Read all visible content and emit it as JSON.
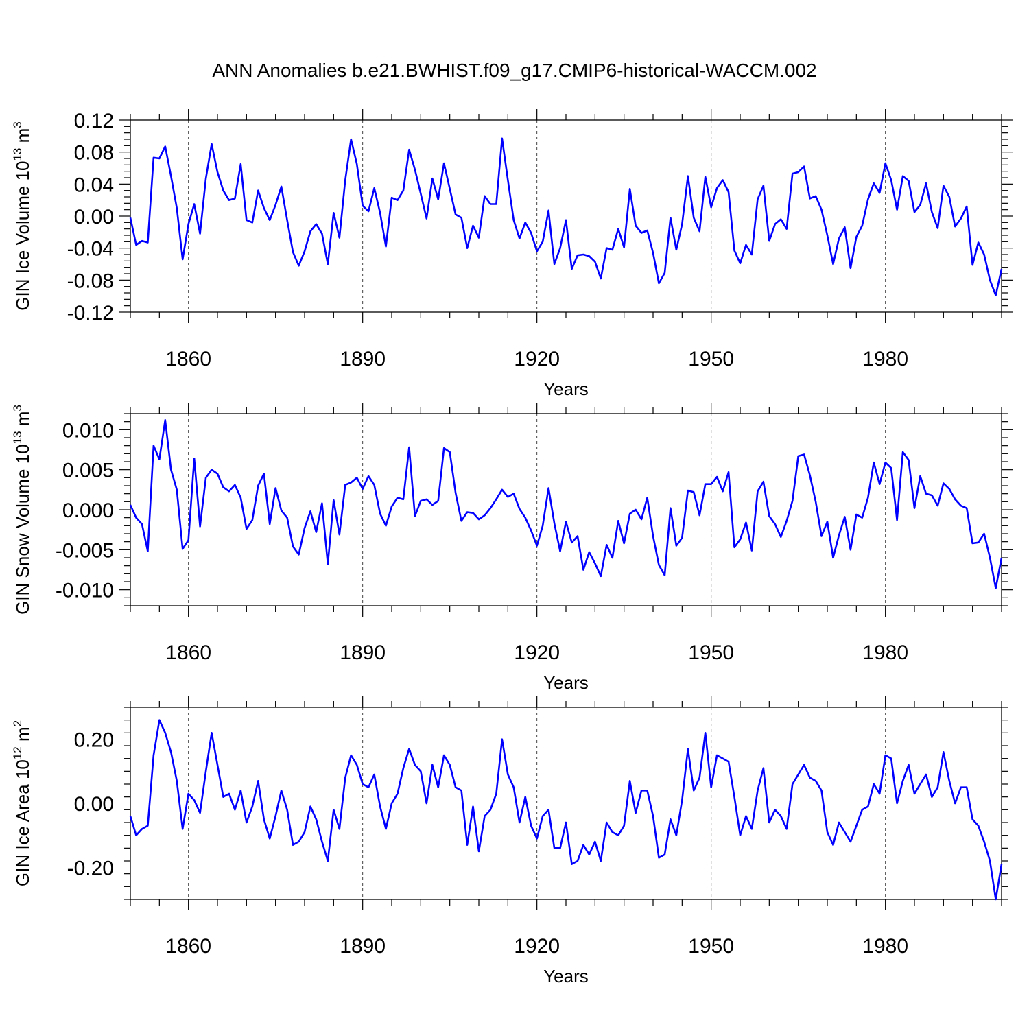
{
  "title": "ANN Anomalies b.e21.BWHIST.f09_g17.CMIP6-historical-WACCM.002",
  "colors": {
    "series": "#0000ff",
    "axes": "#000000",
    "grid": "#444444"
  },
  "chart_data": [
    {
      "type": "line",
      "ylabel": "GIN Ice Volume 10^13 m^3",
      "ylabel_main": "GIN Ice Volume 10",
      "ylabel_exp": "13",
      "ylabel_unit": " m",
      "ylabel_unit_exp": "3",
      "xlabel": "Years",
      "xlim": [
        1850,
        2000
      ],
      "ylim": [
        -0.12,
        0.12
      ],
      "xticks": [
        1860,
        1890,
        1920,
        1950,
        1980
      ],
      "xtick_labels": [
        "1860",
        "1890",
        "1920",
        "1950",
        "1980"
      ],
      "yticks": [
        -0.12,
        -0.08,
        -0.04,
        0.0,
        0.04,
        0.08,
        0.12
      ],
      "ytick_labels": [
        "-0.12",
        "-0.08",
        "-0.04",
        "0.00",
        "0.04",
        "0.08",
        "0.12"
      ],
      "x_start": 1850,
      "series": [
        {
          "name": "GIN Ice Volume",
          "values": [
            -0.002,
            -0.036,
            -0.031,
            -0.033,
            0.073,
            0.072,
            0.087,
            0.05,
            0.01,
            -0.054,
            -0.01,
            0.015,
            -0.022,
            0.047,
            0.09,
            0.055,
            0.032,
            0.02,
            0.022,
            0.065,
            -0.005,
            -0.008,
            0.032,
            0.01,
            -0.005,
            0.014,
            0.037,
            -0.005,
            -0.045,
            -0.062,
            -0.044,
            -0.019,
            -0.01,
            -0.022,
            -0.06,
            0.004,
            -0.027,
            0.045,
            0.096,
            0.065,
            0.013,
            0.006,
            0.035,
            0.004,
            -0.038,
            0.023,
            0.02,
            0.032,
            0.083,
            0.058,
            0.028,
            -0.003,
            0.047,
            0.021,
            0.066,
            0.034,
            0.002,
            -0.002,
            -0.04,
            -0.012,
            -0.027,
            0.025,
            0.015,
            0.015,
            0.097,
            0.045,
            -0.005,
            -0.028,
            -0.008,
            -0.021,
            -0.044,
            -0.032,
            0.007,
            -0.06,
            -0.04,
            -0.005,
            -0.066,
            -0.049,
            -0.048,
            -0.05,
            -0.057,
            -0.078,
            -0.04,
            -0.042,
            -0.016,
            -0.039,
            0.034,
            -0.012,
            -0.021,
            -0.018,
            -0.046,
            -0.084,
            -0.071,
            -0.002,
            -0.042,
            -0.01,
            0.05,
            -0.002,
            -0.019,
            0.049,
            0.011,
            0.035,
            0.045,
            0.03,
            -0.043,
            -0.059,
            -0.036,
            -0.048,
            0.021,
            0.038,
            -0.031,
            -0.01,
            -0.004,
            -0.016,
            0.053,
            0.055,
            0.062,
            0.022,
            0.025,
            0.008,
            -0.024,
            -0.06,
            -0.028,
            -0.014,
            -0.065,
            -0.026,
            -0.012,
            0.021,
            0.041,
            0.029,
            0.066,
            0.045,
            0.008,
            0.05,
            0.044,
            0.005,
            0.014,
            0.041,
            0.005,
            -0.015,
            0.038,
            0.024,
            -0.013,
            -0.003,
            0.012,
            -0.061,
            -0.033,
            -0.048,
            -0.08,
            -0.099,
            -0.066
          ]
        }
      ]
    },
    {
      "type": "line",
      "ylabel": "GIN Snow Volume 10^13 m^3",
      "ylabel_main": "GIN Snow Volume 10",
      "ylabel_exp": "13",
      "ylabel_unit": " m",
      "ylabel_unit_exp": "3",
      "xlabel": "Years",
      "xlim": [
        1850,
        2000
      ],
      "ylim": [
        -0.012,
        0.012
      ],
      "xticks": [
        1860,
        1890,
        1920,
        1950,
        1980
      ],
      "xtick_labels": [
        "1860",
        "1890",
        "1920",
        "1950",
        "1980"
      ],
      "yticks": [
        -0.01,
        -0.005,
        0.0,
        0.005,
        0.01
      ],
      "ytick_labels": [
        "-0.010",
        "-0.005",
        "0.000",
        "0.005",
        "0.010"
      ],
      "x_start": 1850,
      "series": [
        {
          "name": "GIN Snow Volume",
          "values": [
            0.0006,
            -0.001,
            -0.0018,
            -0.0052,
            0.008,
            0.0063,
            0.0112,
            0.005,
            0.0025,
            -0.0049,
            -0.0038,
            0.0064,
            -0.0021,
            0.004,
            0.005,
            0.0045,
            0.0028,
            0.0023,
            0.0031,
            0.0015,
            -0.0024,
            -0.0013,
            0.003,
            0.0045,
            -0.0018,
            0.0027,
            -0.0001,
            -0.001,
            -0.0046,
            -0.0056,
            -0.0023,
            -0.0002,
            -0.0028,
            0.0008,
            -0.0068,
            0.0012,
            -0.0031,
            0.0031,
            0.0034,
            0.004,
            0.0026,
            0.0042,
            0.0031,
            -0.0005,
            -0.002,
            0.0004,
            0.0015,
            0.0013,
            0.0078,
            -0.0008,
            0.0011,
            0.0013,
            0.0006,
            0.0011,
            0.0077,
            0.0072,
            0.0021,
            -0.0014,
            -0.0003,
            -0.0004,
            -0.0012,
            -0.0007,
            0.0002,
            0.0013,
            0.0025,
            0.0016,
            0.002,
            0.0001,
            -0.001,
            -0.0026,
            -0.0045,
            -0.002,
            0.0027,
            -0.0017,
            -0.0052,
            -0.0015,
            -0.0041,
            -0.0033,
            -0.0075,
            -0.0053,
            -0.0067,
            -0.0083,
            -0.0044,
            -0.006,
            -0.0014,
            -0.0042,
            -0.0005,
            0.0,
            -0.0012,
            0.0015,
            -0.0033,
            -0.0069,
            -0.0082,
            0.0002,
            -0.0045,
            -0.0035,
            0.0024,
            0.0022,
            -0.0007,
            0.0032,
            0.0032,
            0.0041,
            0.0023,
            0.0047,
            -0.0047,
            -0.0037,
            -0.0016,
            -0.0051,
            0.0023,
            0.0035,
            -0.0008,
            -0.0018,
            -0.0034,
            -0.0014,
            0.0011,
            0.0067,
            0.0069,
            0.0043,
            0.001,
            -0.0033,
            -0.0015,
            -0.006,
            -0.0032,
            -0.0009,
            -0.005,
            -0.0006,
            -0.001,
            0.0015,
            0.0059,
            0.0032,
            0.0059,
            0.0052,
            -0.0013,
            0.0072,
            0.0062,
            0.0002,
            0.0042,
            0.002,
            0.0018,
            0.0005,
            0.0033,
            0.0026,
            0.0013,
            0.0005,
            0.0002,
            -0.0042,
            -0.0041,
            -0.003,
            -0.006,
            -0.0098,
            -0.006
          ]
        }
      ]
    },
    {
      "type": "line",
      "ylabel": "GIN Ice Area 10^12 m^2",
      "ylabel_main": "GIN Ice Area 10",
      "ylabel_exp": "12",
      "ylabel_unit": " m",
      "ylabel_unit_exp": "2",
      "xlabel": "Years",
      "xlim": [
        1850,
        2000
      ],
      "ylim": [
        -0.3,
        0.3
      ],
      "xticks": [
        1860,
        1890,
        1920,
        1950,
        1980
      ],
      "xtick_labels": [
        "1860",
        "1890",
        "1920",
        "1950",
        "1980"
      ],
      "yticks": [
        -0.2,
        0.0,
        0.2
      ],
      "ytick_labels": [
        "-0.20",
        "0.00",
        "0.20"
      ],
      "x_start": 1850,
      "series": [
        {
          "name": "GIN Ice Area",
          "values": [
            -0.04,
            -0.1,
            -0.08,
            -0.07,
            0.15,
            0.26,
            0.22,
            0.16,
            0.07,
            -0.08,
            0.03,
            0.01,
            -0.03,
            0.1,
            0.22,
            0.12,
            0.02,
            0.03,
            -0.02,
            0.04,
            -0.06,
            -0.01,
            0.07,
            -0.05,
            -0.11,
            -0.04,
            0.04,
            -0.02,
            -0.13,
            -0.12,
            -0.09,
            -0.01,
            -0.05,
            -0.12,
            -0.18,
            -0.02,
            -0.08,
            0.08,
            0.15,
            0.12,
            0.06,
            0.05,
            0.09,
            -0.01,
            -0.08,
            0.0,
            0.03,
            0.11,
            0.17,
            0.12,
            0.1,
            0.0,
            0.12,
            0.05,
            0.15,
            0.12,
            0.05,
            0.04,
            -0.13,
            -0.01,
            -0.15,
            -0.04,
            -0.02,
            0.03,
            0.2,
            0.09,
            0.05,
            -0.06,
            0.02,
            -0.07,
            -0.11,
            -0.04,
            -0.02,
            -0.14,
            -0.14,
            -0.06,
            -0.19,
            -0.18,
            -0.13,
            -0.16,
            -0.12,
            -0.18,
            -0.06,
            -0.09,
            -0.1,
            -0.07,
            0.07,
            -0.03,
            0.04,
            0.04,
            -0.04,
            -0.17,
            -0.16,
            -0.05,
            -0.1,
            0.01,
            0.17,
            0.04,
            0.08,
            0.22,
            0.05,
            0.15,
            0.14,
            0.13,
            0.02,
            -0.1,
            -0.04,
            -0.08,
            0.04,
            0.11,
            -0.06,
            -0.02,
            -0.04,
            -0.08,
            0.06,
            0.09,
            0.12,
            0.08,
            0.07,
            0.04,
            -0.09,
            -0.13,
            -0.06,
            -0.09,
            -0.12,
            -0.07,
            -0.02,
            -0.01,
            0.06,
            0.03,
            0.15,
            0.14,
            0.0,
            0.07,
            0.12,
            0.03,
            0.06,
            0.09,
            0.02,
            0.05,
            0.16,
            0.07,
            0.0,
            0.05,
            0.05,
            -0.05,
            -0.07,
            -0.12,
            -0.18,
            -0.3,
            -0.19
          ]
        }
      ]
    }
  ]
}
